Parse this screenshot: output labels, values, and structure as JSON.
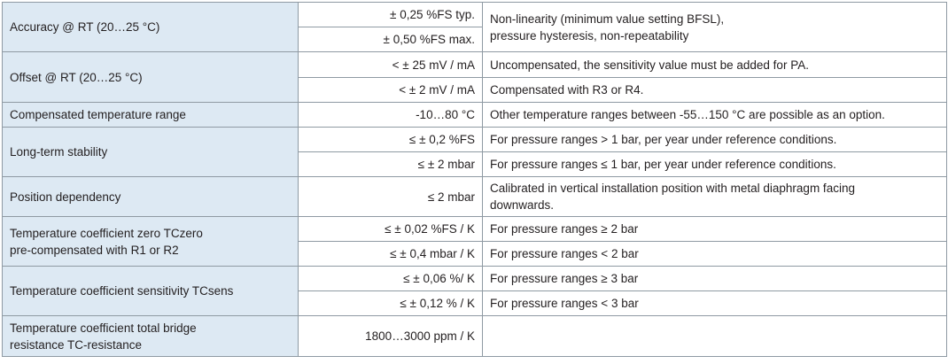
{
  "table": {
    "rows": [
      {
        "parameter": "Accuracy @ RT (20…25 °C)",
        "values": [
          "± 0,25 %FS typ.",
          "± 0,50 %FS max."
        ],
        "notes": [
          "Non-linearity (minimum value setting BFSL),\npressure hysteresis, non-repeatability"
        ],
        "note_spans_values": true
      },
      {
        "parameter": "Offset @ RT (20…25 °C)",
        "values": [
          "< ± 25 mV / mA",
          "< ± 2 mV / mA"
        ],
        "notes": [
          "Uncompensated, the sensitivity value must be added for PA.",
          "Compensated with R3 or R4."
        ]
      },
      {
        "parameter": "Compensated temperature range",
        "values": [
          "-10…80 °C"
        ],
        "notes": [
          "Other temperature ranges between -55…150 °C are possible as an option."
        ]
      },
      {
        "parameter": "Long-term stability",
        "values": [
          "≤ ± 0,2 %FS",
          "≤ ± 2 mbar"
        ],
        "notes": [
          "For pressure ranges > 1 bar, per year under reference conditions.",
          "For pressure ranges  ≤ 1 bar, per year under reference conditions."
        ]
      },
      {
        "parameter": "Position dependency",
        "values": [
          "≤ 2 mbar"
        ],
        "notes": [
          "Calibrated in vertical installation position with metal diaphragm facing\ndownwards."
        ]
      },
      {
        "parameter": "Temperature coefficient zero TCzero\npre-compensated with R1 or R2",
        "values": [
          "≤ ± 0,02 %FS / K",
          "≤ ± 0,4 mbar / K"
        ],
        "notes": [
          "For pressure ranges ≥ 2 bar",
          "For pressure ranges < 2 bar"
        ]
      },
      {
        "parameter": "Temperature coefficient sensitivity TCsens",
        "values": [
          "≤ ± 0,06 %/  K",
          "≤ ± 0,12 % / K"
        ],
        "notes": [
          "For pressure ranges ≥ 3 bar",
          "For pressure ranges < 3 bar"
        ]
      },
      {
        "parameter": "Temperature coefficient total bridge\nresistance TC-resistance",
        "values": [
          "1800…3000 ppm / K"
        ],
        "notes": [
          ""
        ]
      }
    ]
  },
  "colors": {
    "parameter_background": "#dde9f3",
    "border": "#8f9aa3",
    "text": "#231f20"
  }
}
